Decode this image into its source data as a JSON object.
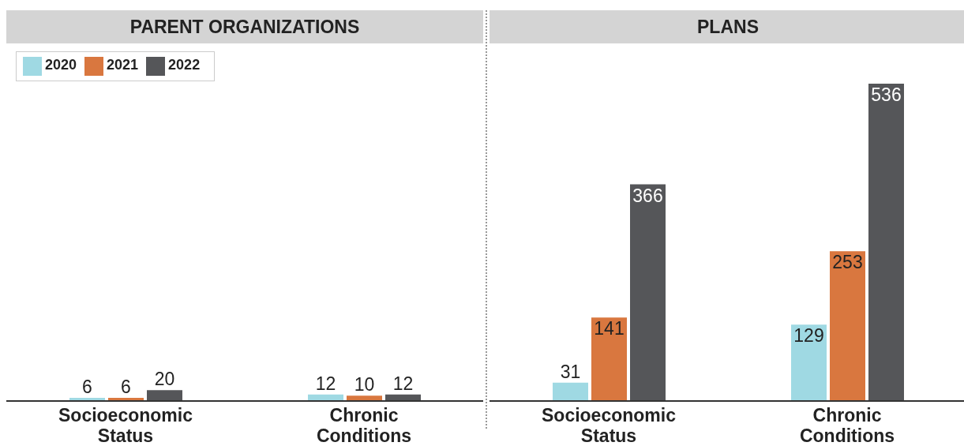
{
  "chart_data": [
    {
      "type": "bar",
      "title": "PARENT ORGANIZATIONS",
      "categories": [
        "Socioeconomic Status",
        "Chronic Conditions"
      ],
      "series": [
        {
          "name": "2020",
          "color": "#9fd9e3",
          "values": [
            6,
            12
          ]
        },
        {
          "name": "2021",
          "color": "#d9773f",
          "values": [
            6,
            10
          ]
        },
        {
          "name": "2022",
          "color": "#555659",
          "values": [
            20,
            12
          ]
        }
      ],
      "tick_labels": "x",
      "data_labels": true,
      "legend": "top left"
    },
    {
      "type": "bar",
      "title": "PLANS",
      "categories": [
        "Socioeconomic Status",
        "Chronic Conditions"
      ],
      "series": [
        {
          "color": "#9fd9e3",
          "values": [
            31,
            129
          ]
        },
        {
          "color": "#d9773f",
          "values": [
            141,
            253
          ]
        },
        {
          "color": "#555659",
          "values": [
            366,
            536
          ]
        }
      ],
      "tick_labels": "x",
      "data_labels": true
    }
  ]
}
